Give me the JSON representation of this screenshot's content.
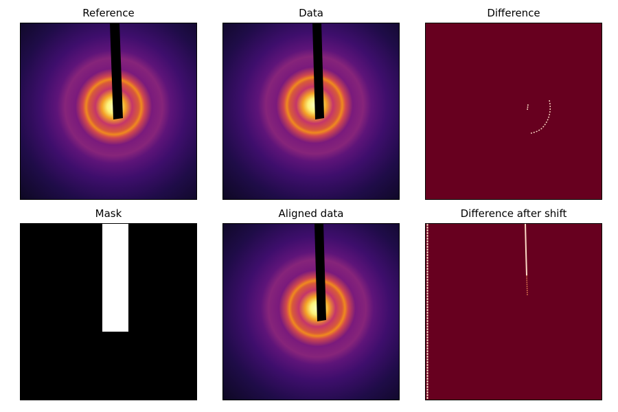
{
  "figure": {
    "panels": [
      {
        "id": "reference",
        "title": "Reference",
        "kind": "diffraction"
      },
      {
        "id": "data",
        "title": "Data",
        "kind": "diffraction"
      },
      {
        "id": "difference",
        "title": "Difference",
        "kind": "difference"
      },
      {
        "id": "mask",
        "title": "Mask",
        "kind": "mask"
      },
      {
        "id": "aligned",
        "title": "Aligned data",
        "kind": "diffraction"
      },
      {
        "id": "difference_shift",
        "title": "Difference after shift",
        "kind": "difference_shift"
      }
    ],
    "colors": {
      "background": "#ffffff",
      "diff_background": "#67001f",
      "diff_highlight": "#fddbc7",
      "mask_on": "#ffffff",
      "mask_off": "#000000",
      "beamstop": "#000000",
      "inferno_dark": "#0f0a2a",
      "inferno_purple": "#4a0d6b",
      "inferno_orange": "#f07818",
      "inferno_yellow": "#fcffa4"
    }
  }
}
